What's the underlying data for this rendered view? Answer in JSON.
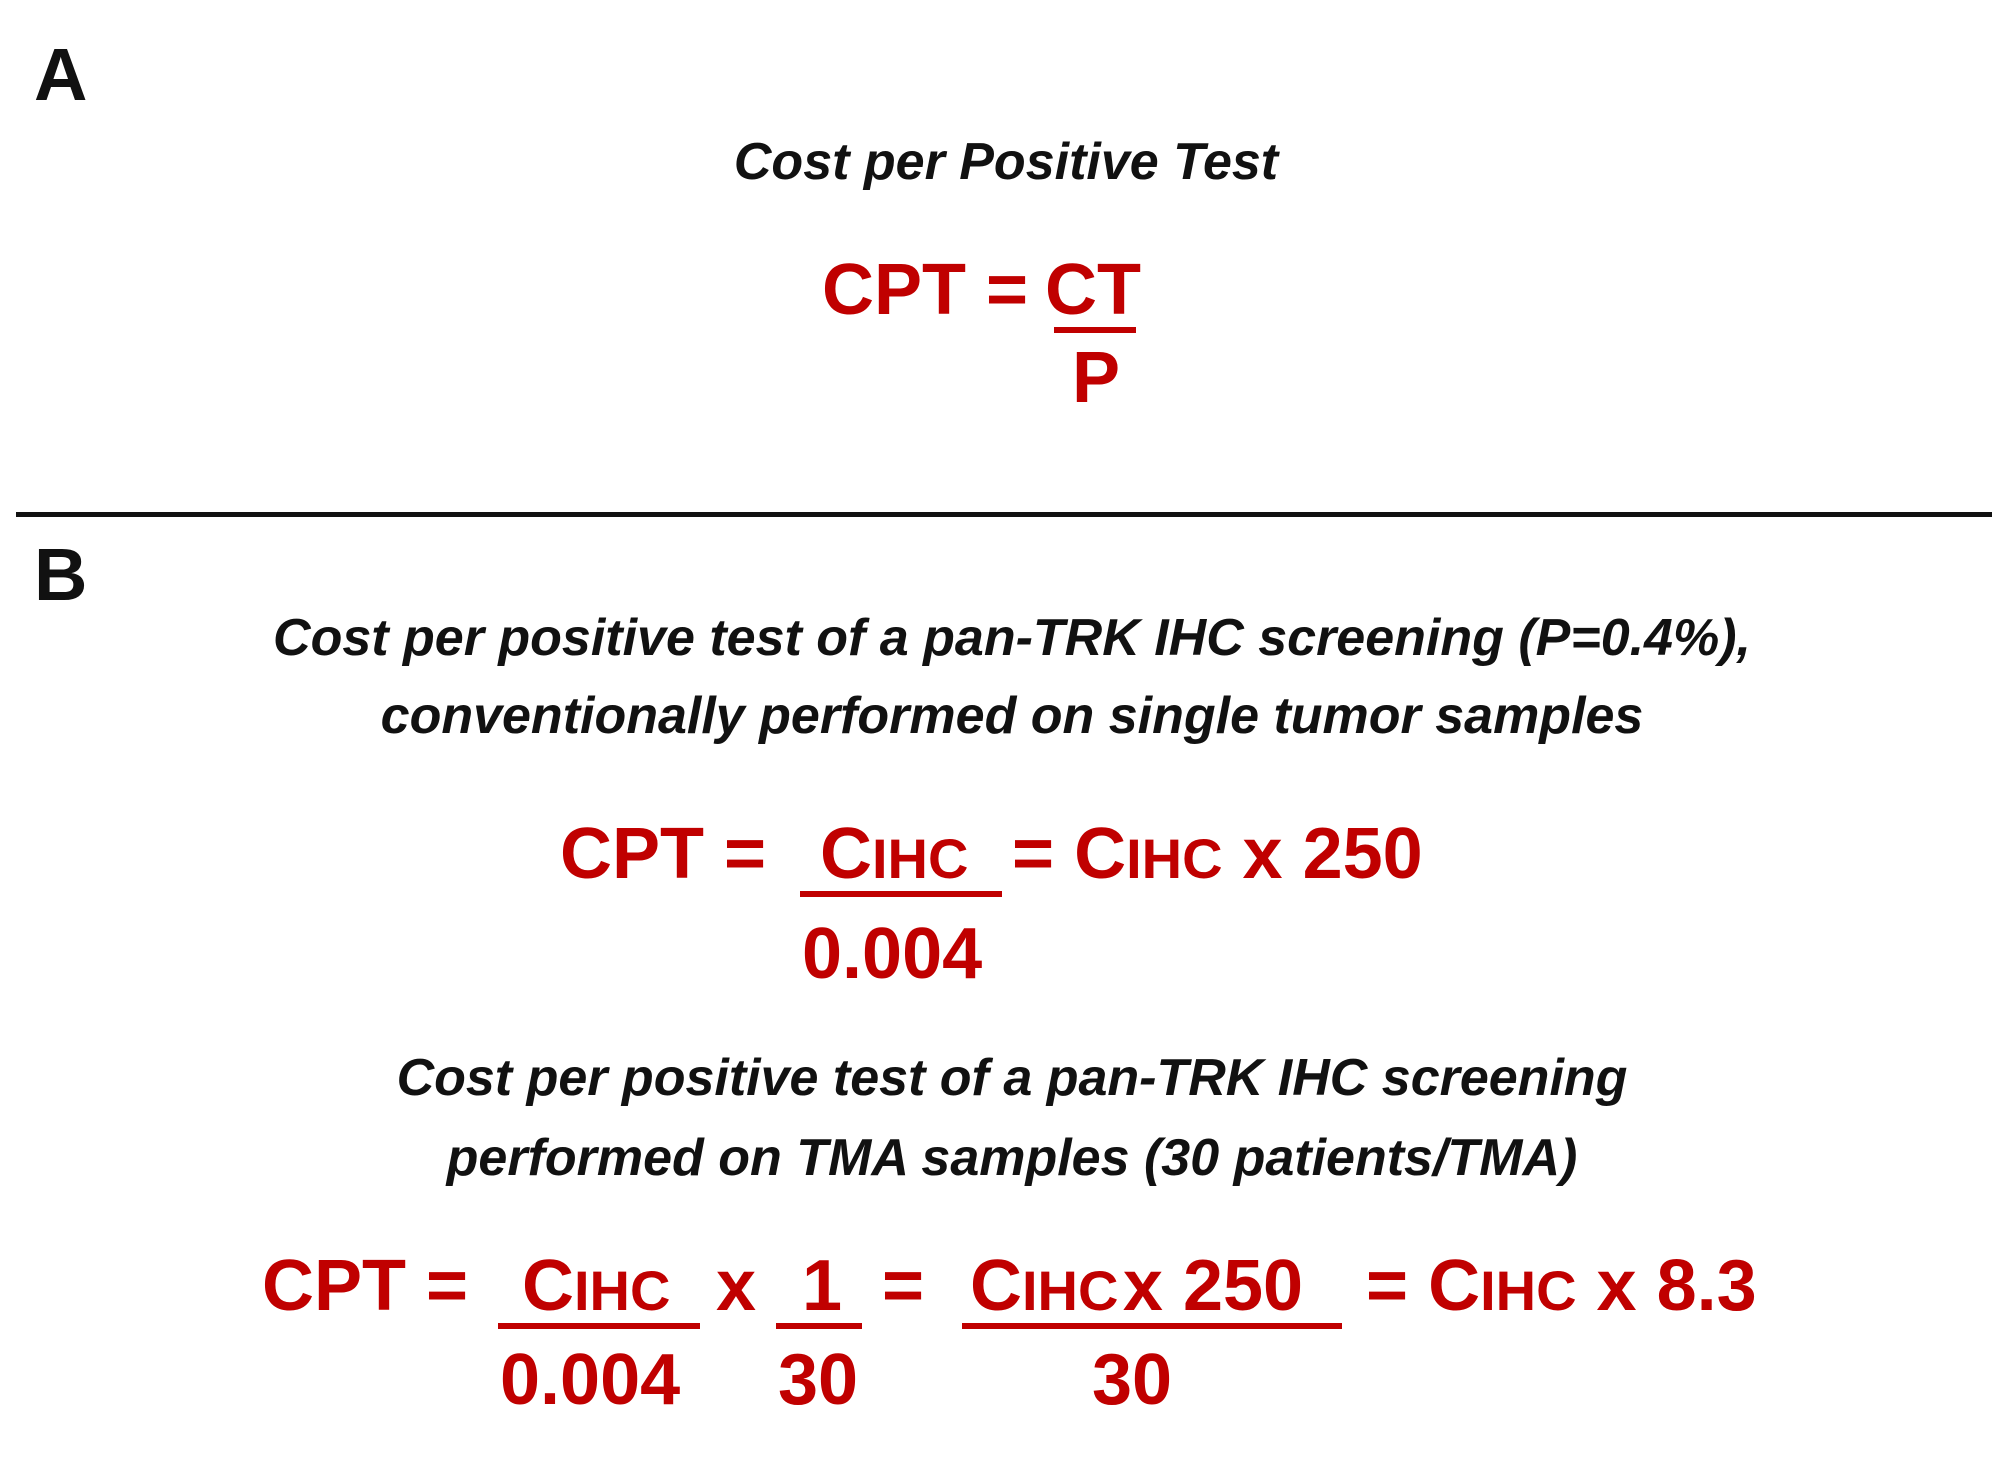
{
  "panel_a": {
    "label": "A",
    "title": "Cost per Positive Test",
    "lhs": "CPT =",
    "numerator": "CT",
    "denominator": "P"
  },
  "panel_b": {
    "label": "B",
    "heading1_line1": "Cost per positive test of a  pan-TRK IHC screening (P=0.4%),",
    "heading1_line2": "conventionally performed on single tumor samples",
    "eq1": {
      "lhs": "CPT =",
      "num_c": "C",
      "num_sub": "IHC",
      "den": "0.004",
      "rhs_eq": "=",
      "rhs_c": "C",
      "rhs_sub": "IHC",
      "rhs_tail": "x 250"
    },
    "heading2_line1": "Cost per positive test of a  pan-TRK IHC screening",
    "heading2_line2": "performed on TMA samples (30 patients/TMA)",
    "eq2": {
      "lhs": "CPT =",
      "f1_num_c": "C",
      "f1_num_sub": "IHC",
      "f1_den": "0.004",
      "times": "x",
      "f2_num": "1",
      "f2_den": "30",
      "eq_a": "=",
      "f3_num_c": "C",
      "f3_num_sub": "IHC",
      "f3_num_tail": "x 250",
      "f3_den": "30",
      "eq_b": "=",
      "rhs_c": "C",
      "rhs_sub": "IHC",
      "rhs_tail": "x 8.3"
    }
  }
}
